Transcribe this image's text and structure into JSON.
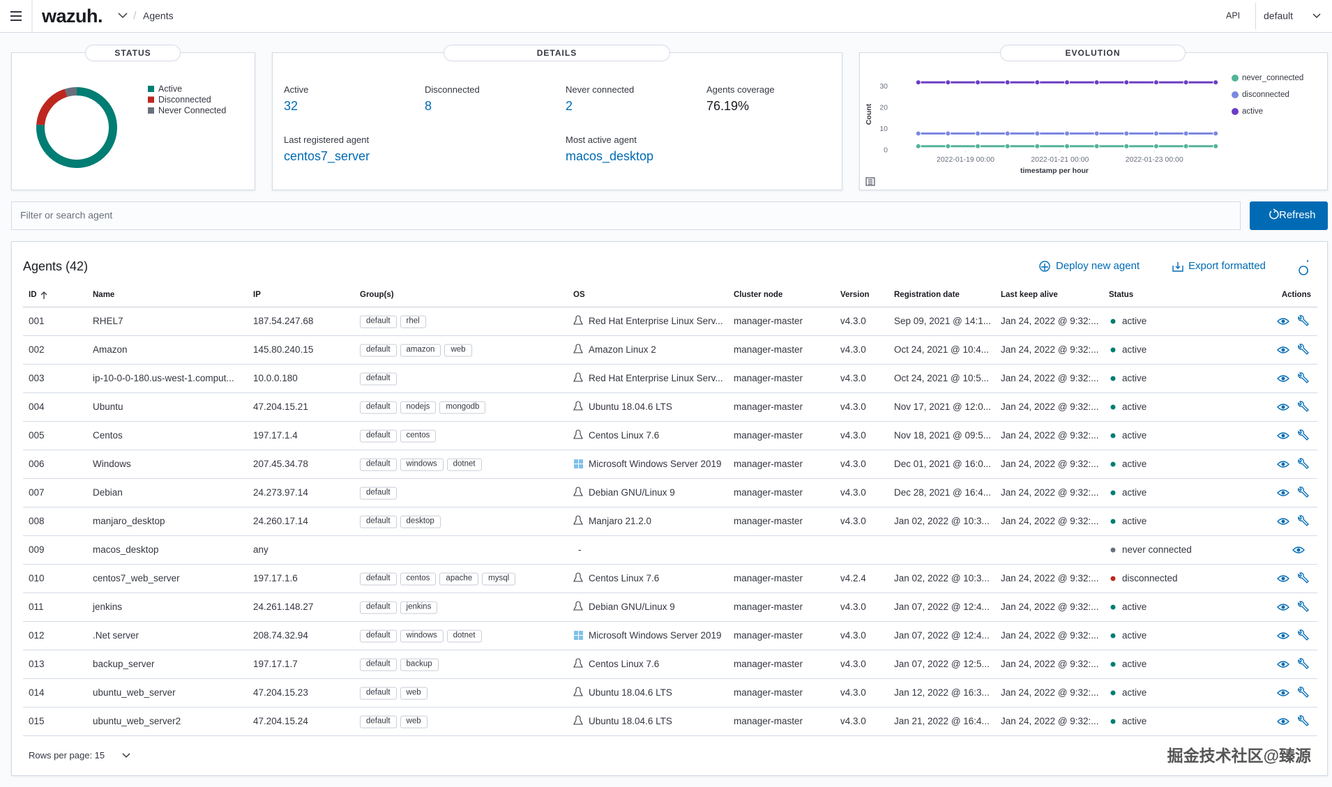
{
  "header": {
    "logo": "wazuh.",
    "breadcrumb": "Agents",
    "api": "API",
    "space": "default"
  },
  "status": {
    "title": "STATUS",
    "legend": [
      {
        "name": "Active",
        "color": "#017d73"
      },
      {
        "name": "Disconnected",
        "color": "#bd271e"
      },
      {
        "name": "Never Connected",
        "color": "#69707d"
      }
    ]
  },
  "details": {
    "title": "DETAILS",
    "stats": [
      {
        "label": "Active",
        "value": 32
      },
      {
        "label": "Disconnected",
        "value": 8
      },
      {
        "label": "Never connected",
        "value": 2
      },
      {
        "label": "Agents coverage",
        "value": "76.19%"
      }
    ],
    "agents": [
      {
        "label": "Last registered agent",
        "value": "centos7_server"
      },
      {
        "label": "Most active agent",
        "value": "macos_desktop"
      }
    ]
  },
  "chart_data": {
    "type": "line",
    "title": "EVOLUTION",
    "y_label": "Count",
    "x_label": "timestamp per hour",
    "x": [
      18.0,
      18.63,
      19.26,
      19.89,
      20.52,
      21.15,
      21.78,
      22.41,
      23.04,
      23.67,
      24.3
    ],
    "xlim": [
      17.9,
      24.4
    ],
    "xticks": [
      {
        "value": 19,
        "label": "2022-01-19 00:00"
      },
      {
        "value": 21,
        "label": "2022-01-21 00:00"
      },
      {
        "value": 23,
        "label": "2022-01-23 00:00"
      }
    ],
    "ylim": [
      -2,
      34
    ],
    "yticks": [
      0,
      10,
      20,
      30
    ],
    "legend": "right",
    "series": [
      {
        "name": "never_connected",
        "color": "#54b399",
        "values": [
          2,
          2,
          2,
          2,
          2,
          2,
          2,
          2,
          2,
          2,
          2
        ]
      },
      {
        "name": "disconnected",
        "color": "#7b88e0",
        "values": [
          8,
          8,
          8,
          8,
          8,
          8,
          8,
          8,
          8,
          8,
          8
        ]
      },
      {
        "name": "active",
        "color": "#6a3dc4",
        "values": [
          32,
          32,
          32,
          32,
          32,
          32,
          32,
          32,
          32,
          32,
          32
        ]
      }
    ]
  },
  "search": {
    "placeholder": "Filter or search agent",
    "button": "Refresh"
  },
  "agents_table": {
    "title": "Agents (42)",
    "actions": [
      "Deploy new agent",
      "Export formatted"
    ],
    "columns": [
      "ID",
      "Name",
      "IP",
      "Group(s)",
      "OS",
      "Cluster node",
      "Version",
      "Registration date",
      "Last keep alive",
      "Status",
      "Actions"
    ],
    "rows": [
      {
        "id": "001",
        "name": "RHEL7",
        "ip": "187.54.247.68",
        "groups": [
          "default",
          "rhel"
        ],
        "os_icon": "linux",
        "os": "Red Hat Enterprise Linux Serv...",
        "node": "manager-master",
        "version": "v4.3.0",
        "registered": "Sep 09, 2021 @ 14:1...",
        "keepalive": "Jan 24, 2022 @ 9:32:...",
        "status": "active",
        "status_color": "#017d73"
      },
      {
        "id": "002",
        "name": "Amazon",
        "ip": "145.80.240.15",
        "groups": [
          "default",
          "amazon",
          "web"
        ],
        "os_icon": "linux",
        "os": "Amazon Linux 2",
        "node": "manager-master",
        "version": "v4.3.0",
        "registered": "Oct 24, 2021 @ 10:4...",
        "keepalive": "Jan 24, 2022 @ 9:32:...",
        "status": "active",
        "status_color": "#017d73"
      },
      {
        "id": "003",
        "name": "ip-10-0-0-180.us-west-1.comput...",
        "ip": "10.0.0.180",
        "groups": [
          "default"
        ],
        "os_icon": "linux",
        "os": "Red Hat Enterprise Linux Serv...",
        "node": "manager-master",
        "version": "v4.3.0",
        "registered": "Oct 24, 2021 @ 10:5...",
        "keepalive": "Jan 24, 2022 @ 9:32:...",
        "status": "active",
        "status_color": "#017d73"
      },
      {
        "id": "004",
        "name": "Ubuntu",
        "ip": "47.204.15.21",
        "groups": [
          "default",
          "nodejs",
          "mongodb"
        ],
        "os_icon": "linux",
        "os": "Ubuntu 18.04.6 LTS",
        "node": "manager-master",
        "version": "v4.3.0",
        "registered": "Nov 17, 2021 @ 12:0...",
        "keepalive": "Jan 24, 2022 @ 9:32:...",
        "status": "active",
        "status_color": "#017d73"
      },
      {
        "id": "005",
        "name": "Centos",
        "ip": "197.17.1.4",
        "groups": [
          "default",
          "centos"
        ],
        "os_icon": "linux",
        "os": "Centos Linux 7.6",
        "node": "manager-master",
        "version": "v4.3.0",
        "registered": "Nov 18, 2021 @ 09:5...",
        "keepalive": "Jan 24, 2022 @ 9:32:...",
        "status": "active",
        "status_color": "#017d73"
      },
      {
        "id": "006",
        "name": "Windows",
        "ip": "207.45.34.78",
        "groups": [
          "default",
          "windows",
          "dotnet"
        ],
        "os_icon": "windows",
        "os": "Microsoft Windows Server 2019",
        "node": "manager-master",
        "version": "v4.3.0",
        "registered": "Dec 01, 2021 @ 16:0...",
        "keepalive": "Jan 24, 2022 @ 9:32:...",
        "status": "active",
        "status_color": "#017d73"
      },
      {
        "id": "007",
        "name": "Debian",
        "ip": "24.273.97.14",
        "groups": [
          "default"
        ],
        "os_icon": "linux",
        "os": "Debian GNU/Linux 9",
        "node": "manager-master",
        "version": "v4.3.0",
        "registered": "Dec 28, 2021 @ 16:4...",
        "keepalive": "Jan 24, 2022 @ 9:32:...",
        "status": "active",
        "status_color": "#017d73"
      },
      {
        "id": "008",
        "name": "manjaro_desktop",
        "ip": "24.260.17.14",
        "groups": [
          "default",
          "desktop"
        ],
        "os_icon": "linux",
        "os": "Manjaro 21.2.0",
        "node": "manager-master",
        "version": "v4.3.0",
        "registered": "Jan 02, 2022 @ 10:3...",
        "keepalive": "Jan 24, 2022 @ 9:32:...",
        "status": "active",
        "status_color": "#017d73"
      },
      {
        "id": "009",
        "name": "macos_desktop",
        "ip": "any",
        "groups": [],
        "os": "-",
        "status": "never connected",
        "status_color": "#69707d"
      },
      {
        "id": "010",
        "name": "centos7_web_server",
        "ip": "197.17.1.6",
        "groups": [
          "default",
          "centos",
          "apache",
          "mysql"
        ],
        "os_icon": "linux",
        "os": "Centos Linux 7.6",
        "node": "manager-master",
        "version": "v4.2.4",
        "registered": "Jan 02, 2022 @ 10:3...",
        "keepalive": "Jan 24, 2022 @ 9:32:...",
        "status": "disconnected",
        "status_color": "#bd271e"
      },
      {
        "id": "011",
        "name": "jenkins",
        "ip": "24.261.148.27",
        "groups": [
          "default",
          "jenkins"
        ],
        "os_icon": "linux",
        "os": "Debian GNU/Linux 9",
        "node": "manager-master",
        "version": "v4.3.0",
        "registered": "Jan 07, 2022 @ 12:4...",
        "keepalive": "Jan 24, 2022 @ 9:32:...",
        "status": "active",
        "status_color": "#017d73"
      },
      {
        "id": "012",
        "name": ".Net server",
        "ip": "208.74.32.94",
        "groups": [
          "default",
          "windows",
          "dotnet"
        ],
        "os_icon": "windows",
        "os": "Microsoft Windows Server 2019",
        "node": "manager-master",
        "version": "v4.3.0",
        "registered": "Jan 07, 2022 @ 12:4...",
        "keepalive": "Jan 24, 2022 @ 9:32:...",
        "status": "active",
        "status_color": "#017d73"
      },
      {
        "id": "013",
        "name": "backup_server",
        "ip": "197.17.1.7",
        "groups": [
          "default",
          "backup"
        ],
        "os_icon": "linux",
        "os": "Centos Linux 7.6",
        "node": "manager-master",
        "version": "v4.3.0",
        "registered": "Jan 07, 2022 @ 12:5...",
        "keepalive": "Jan 24, 2022 @ 9:32:...",
        "status": "active",
        "status_color": "#017d73"
      },
      {
        "id": "014",
        "name": "ubuntu_web_server",
        "ip": "47.204.15.23",
        "groups": [
          "default",
          "web"
        ],
        "os_icon": "linux",
        "os": "Ubuntu 18.04.6 LTS",
        "node": "manager-master",
        "version": "v4.3.0",
        "registered": "Jan 12, 2022 @ 16:3...",
        "keepalive": "Jan 24, 2022 @ 9:32:...",
        "status": "active",
        "status_color": "#017d73"
      },
      {
        "id": "015",
        "name": "ubuntu_web_server2",
        "ip": "47.204.15.24",
        "groups": [
          "default",
          "web"
        ],
        "os_icon": "linux",
        "os": "Ubuntu 18.04.6 LTS",
        "node": "manager-master",
        "version": "v4.3.0",
        "registered": "Jan 21, 2022 @ 16:4...",
        "keepalive": "Jan 24, 2022 @ 9:32:...",
        "status": "active",
        "status_color": "#017d73"
      }
    ],
    "footer": "Rows per page: 15"
  },
  "watermark": "掘金技术社区@臻源"
}
